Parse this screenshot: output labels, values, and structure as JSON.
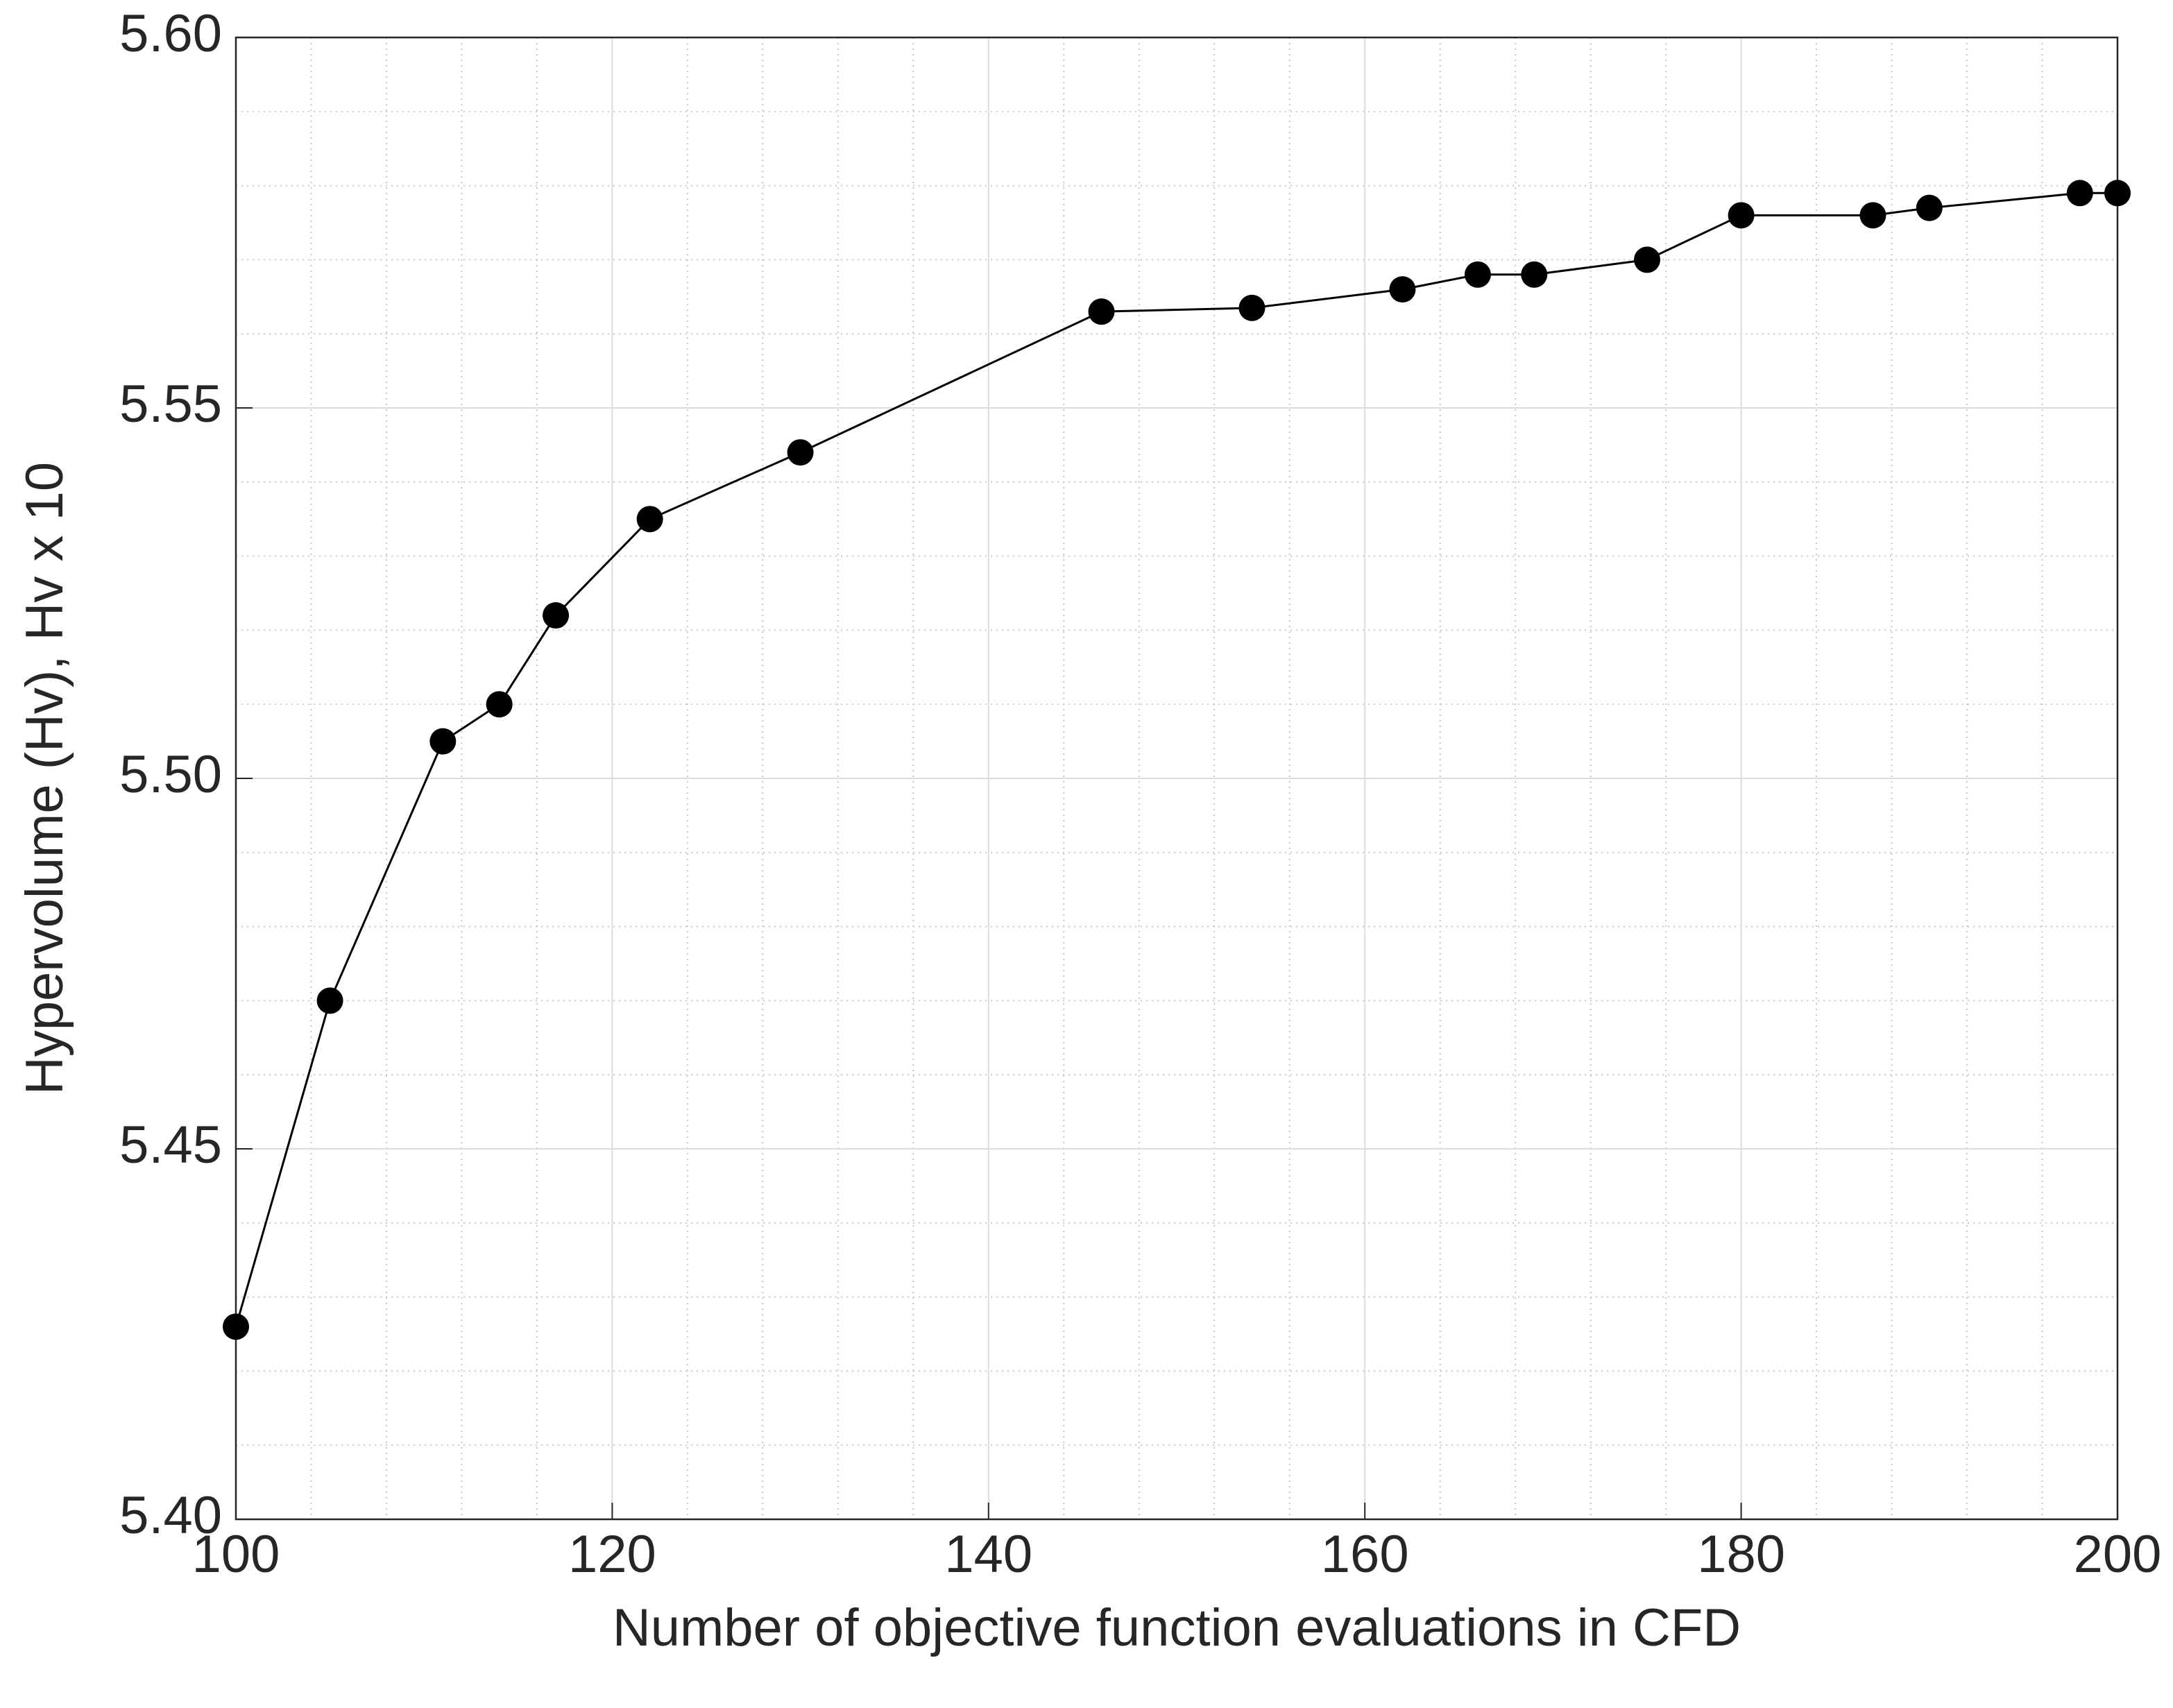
{
  "chart_data": {
    "type": "line",
    "x_label": "Number of objective function evaluations in CFD",
    "y_label": "Hypervolume (Hv), Hv x 10",
    "x": [
      100,
      105,
      111,
      114,
      117,
      122,
      130,
      146,
      154,
      162,
      166,
      169,
      175,
      180,
      187,
      190,
      198,
      200
    ],
    "series": [
      {
        "color": "#000000",
        "values": [
          5.426,
          5.47,
          5.505,
          5.51,
          5.522,
          5.535,
          5.544,
          5.563,
          5.5635,
          5.566,
          5.568,
          5.568,
          5.57,
          5.576,
          5.576,
          5.577,
          5.579,
          5.579
        ]
      }
    ],
    "xlim": [
      100,
      200
    ],
    "xticks": [
      100,
      120,
      140,
      160,
      180,
      200
    ],
    "ylim": [
      5.4,
      5.6
    ],
    "yticks": [
      {
        "value": 5.4,
        "label": "5.40"
      },
      5.45,
      {
        "value": 5.5,
        "label": "5.50"
      },
      5.55,
      {
        "value": 5.6,
        "label": "5.60"
      }
    ],
    "grid": true,
    "minor_grid": true,
    "markers": true
  }
}
